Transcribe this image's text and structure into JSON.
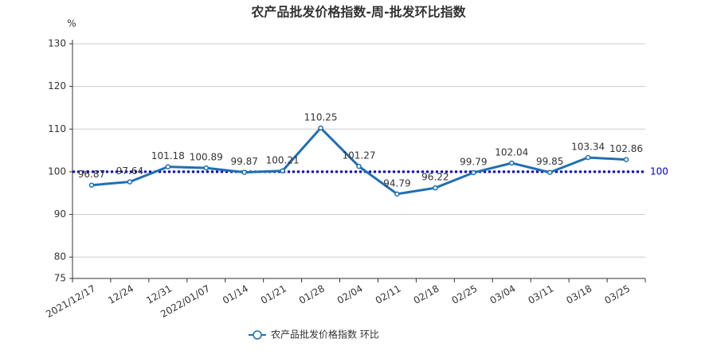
{
  "chart_data": {
    "type": "line",
    "title": "农产品批发价格指数-周-批发环比指数",
    "y_unit": "%",
    "categories": [
      "2021/12/17",
      "12/24",
      "12/31",
      "2022/01/07",
      "01/14",
      "01/21",
      "01/28",
      "02/04",
      "02/11",
      "02/18",
      "02/25",
      "03/04",
      "03/11",
      "03/18",
      "03/25"
    ],
    "series": [
      {
        "name": "农产品批发价格指数  环比",
        "color": "#1f6fb4",
        "values": [
          96.87,
          97.64,
          101.18,
          100.89,
          99.87,
          100.21,
          110.25,
          101.27,
          94.79,
          96.22,
          99.79,
          102.04,
          99.85,
          103.34,
          102.86
        ]
      }
    ],
    "reference_line": 100,
    "reference_color": "#0000cc",
    "ylim": [
      75,
      130
    ],
    "yticks": [
      75,
      80,
      90,
      100,
      110,
      120,
      130
    ],
    "grid": true
  }
}
